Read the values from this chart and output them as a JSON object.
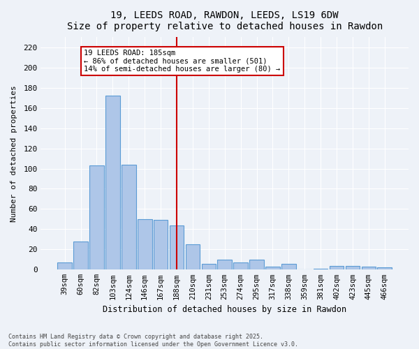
{
  "title": "19, LEEDS ROAD, RAWDON, LEEDS, LS19 6DW",
  "subtitle": "Size of property relative to detached houses in Rawdon",
  "xlabel": "Distribution of detached houses by size in Rawdon",
  "ylabel": "Number of detached properties",
  "categories": [
    "39sqm",
    "60sqm",
    "82sqm",
    "103sqm",
    "124sqm",
    "146sqm",
    "167sqm",
    "188sqm",
    "210sqm",
    "231sqm",
    "253sqm",
    "274sqm",
    "295sqm",
    "317sqm",
    "338sqm",
    "359sqm",
    "381sqm",
    "402sqm",
    "423sqm",
    "445sqm",
    "466sqm"
  ],
  "values": [
    7,
    28,
    103,
    172,
    104,
    50,
    49,
    44,
    25,
    6,
    10,
    7,
    10,
    3,
    6,
    0,
    1,
    4,
    4,
    3,
    2
  ],
  "bar_color": "#aec6e8",
  "bar_edge_color": "#5b9bd5",
  "background_color": "#eef2f8",
  "grid_color": "#ffffff",
  "marker_index": 7,
  "annotation_title": "19 LEEDS ROAD: 185sqm",
  "annotation_line1": "← 86% of detached houses are smaller (501)",
  "annotation_line2": "14% of semi-detached houses are larger (80) →",
  "annotation_box_color": "#ffffff",
  "annotation_box_edge": "#cc0000",
  "marker_line_color": "#cc0000",
  "ylim": [
    0,
    230
  ],
  "yticks": [
    0,
    20,
    40,
    60,
    80,
    100,
    120,
    140,
    160,
    180,
    200,
    220
  ],
  "footer1": "Contains HM Land Registry data © Crown copyright and database right 2025.",
  "footer2": "Contains public sector information licensed under the Open Government Licence v3.0."
}
